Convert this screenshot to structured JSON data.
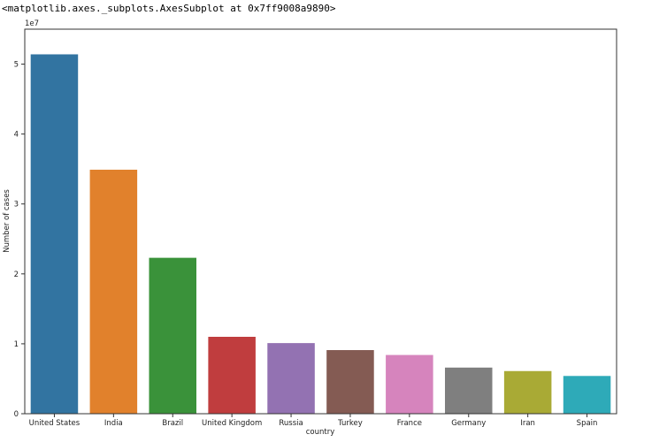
{
  "repr_text": "<matplotlib.axes._subplots.AxesSubplot at 0x7ff9008a9890>",
  "chart_data": {
    "type": "bar",
    "title": "",
    "xlabel": "country",
    "ylabel": "Number of cases",
    "offset_text": "1e7",
    "categories": [
      "United States",
      "India",
      "Brazil",
      "United Kingdom",
      "Russia",
      "Turkey",
      "France",
      "Germany",
      "Iran",
      "Spain"
    ],
    "values": [
      51400000,
      34900000,
      22300000,
      11000000,
      10100000,
      9100000,
      8400000,
      6600000,
      6100000,
      5400000
    ],
    "colors": [
      "#3274a1",
      "#e1812c",
      "#3a923a",
      "#c03d3e",
      "#9372b2",
      "#845b53",
      "#d684bd",
      "#7f7f7f",
      "#a9aa35",
      "#2eaab8"
    ],
    "ylim": [
      0,
      55000000
    ],
    "yticks": [
      0,
      10000000,
      20000000,
      30000000,
      40000000,
      50000000
    ],
    "ytick_labels": [
      "0",
      "1",
      "2",
      "3",
      "4",
      "5"
    ],
    "grid": false,
    "legend": "none"
  }
}
